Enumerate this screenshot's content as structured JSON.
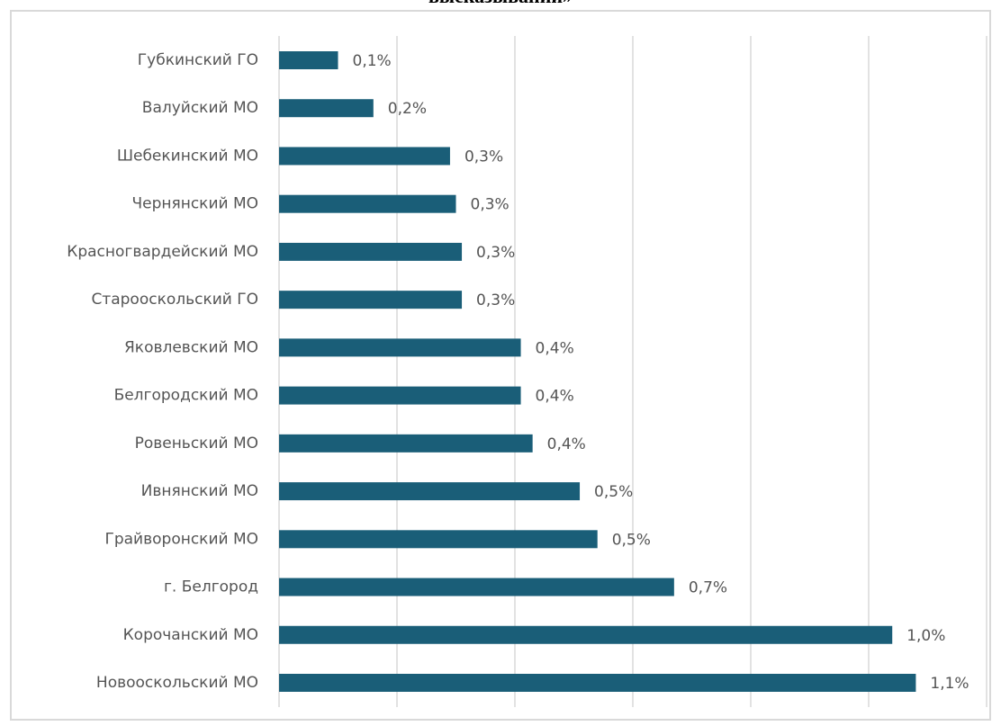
{
  "chart_data": {
    "type": "barh",
    "title": "высказываний»",
    "categories": [
      "Губкинский ГО",
      "Валуйский МО",
      "Шебекинский МО",
      "Чернянский МО",
      "Красногвардейский МО",
      "Старооскольский ГО",
      "Яковлевский МО",
      "Белгородский МО",
      "Ровеньский МО",
      "Ивнянский МО",
      "Грайворонский МО",
      "г. Белгород",
      "Корочанский МО",
      "Новооскольский МО"
    ],
    "values": [
      0.1,
      0.16,
      0.29,
      0.3,
      0.31,
      0.31,
      0.41,
      0.41,
      0.43,
      0.51,
      0.54,
      0.67,
      1.04,
      1.08
    ],
    "value_labels": [
      "0,1%",
      "0,2%",
      "0,3%",
      "0,3%",
      "0,3%",
      "0,3%",
      "0,4%",
      "0,4%",
      "0,4%",
      "0,5%",
      "0,5%",
      "0,7%",
      "1,0%",
      "1,1%"
    ],
    "color": "#1a5e78",
    "xlim": [
      0,
      1.2
    ],
    "xticks": [
      0,
      0.2,
      0.4,
      0.6,
      0.8,
      1.0,
      1.2
    ],
    "grid": true
  }
}
